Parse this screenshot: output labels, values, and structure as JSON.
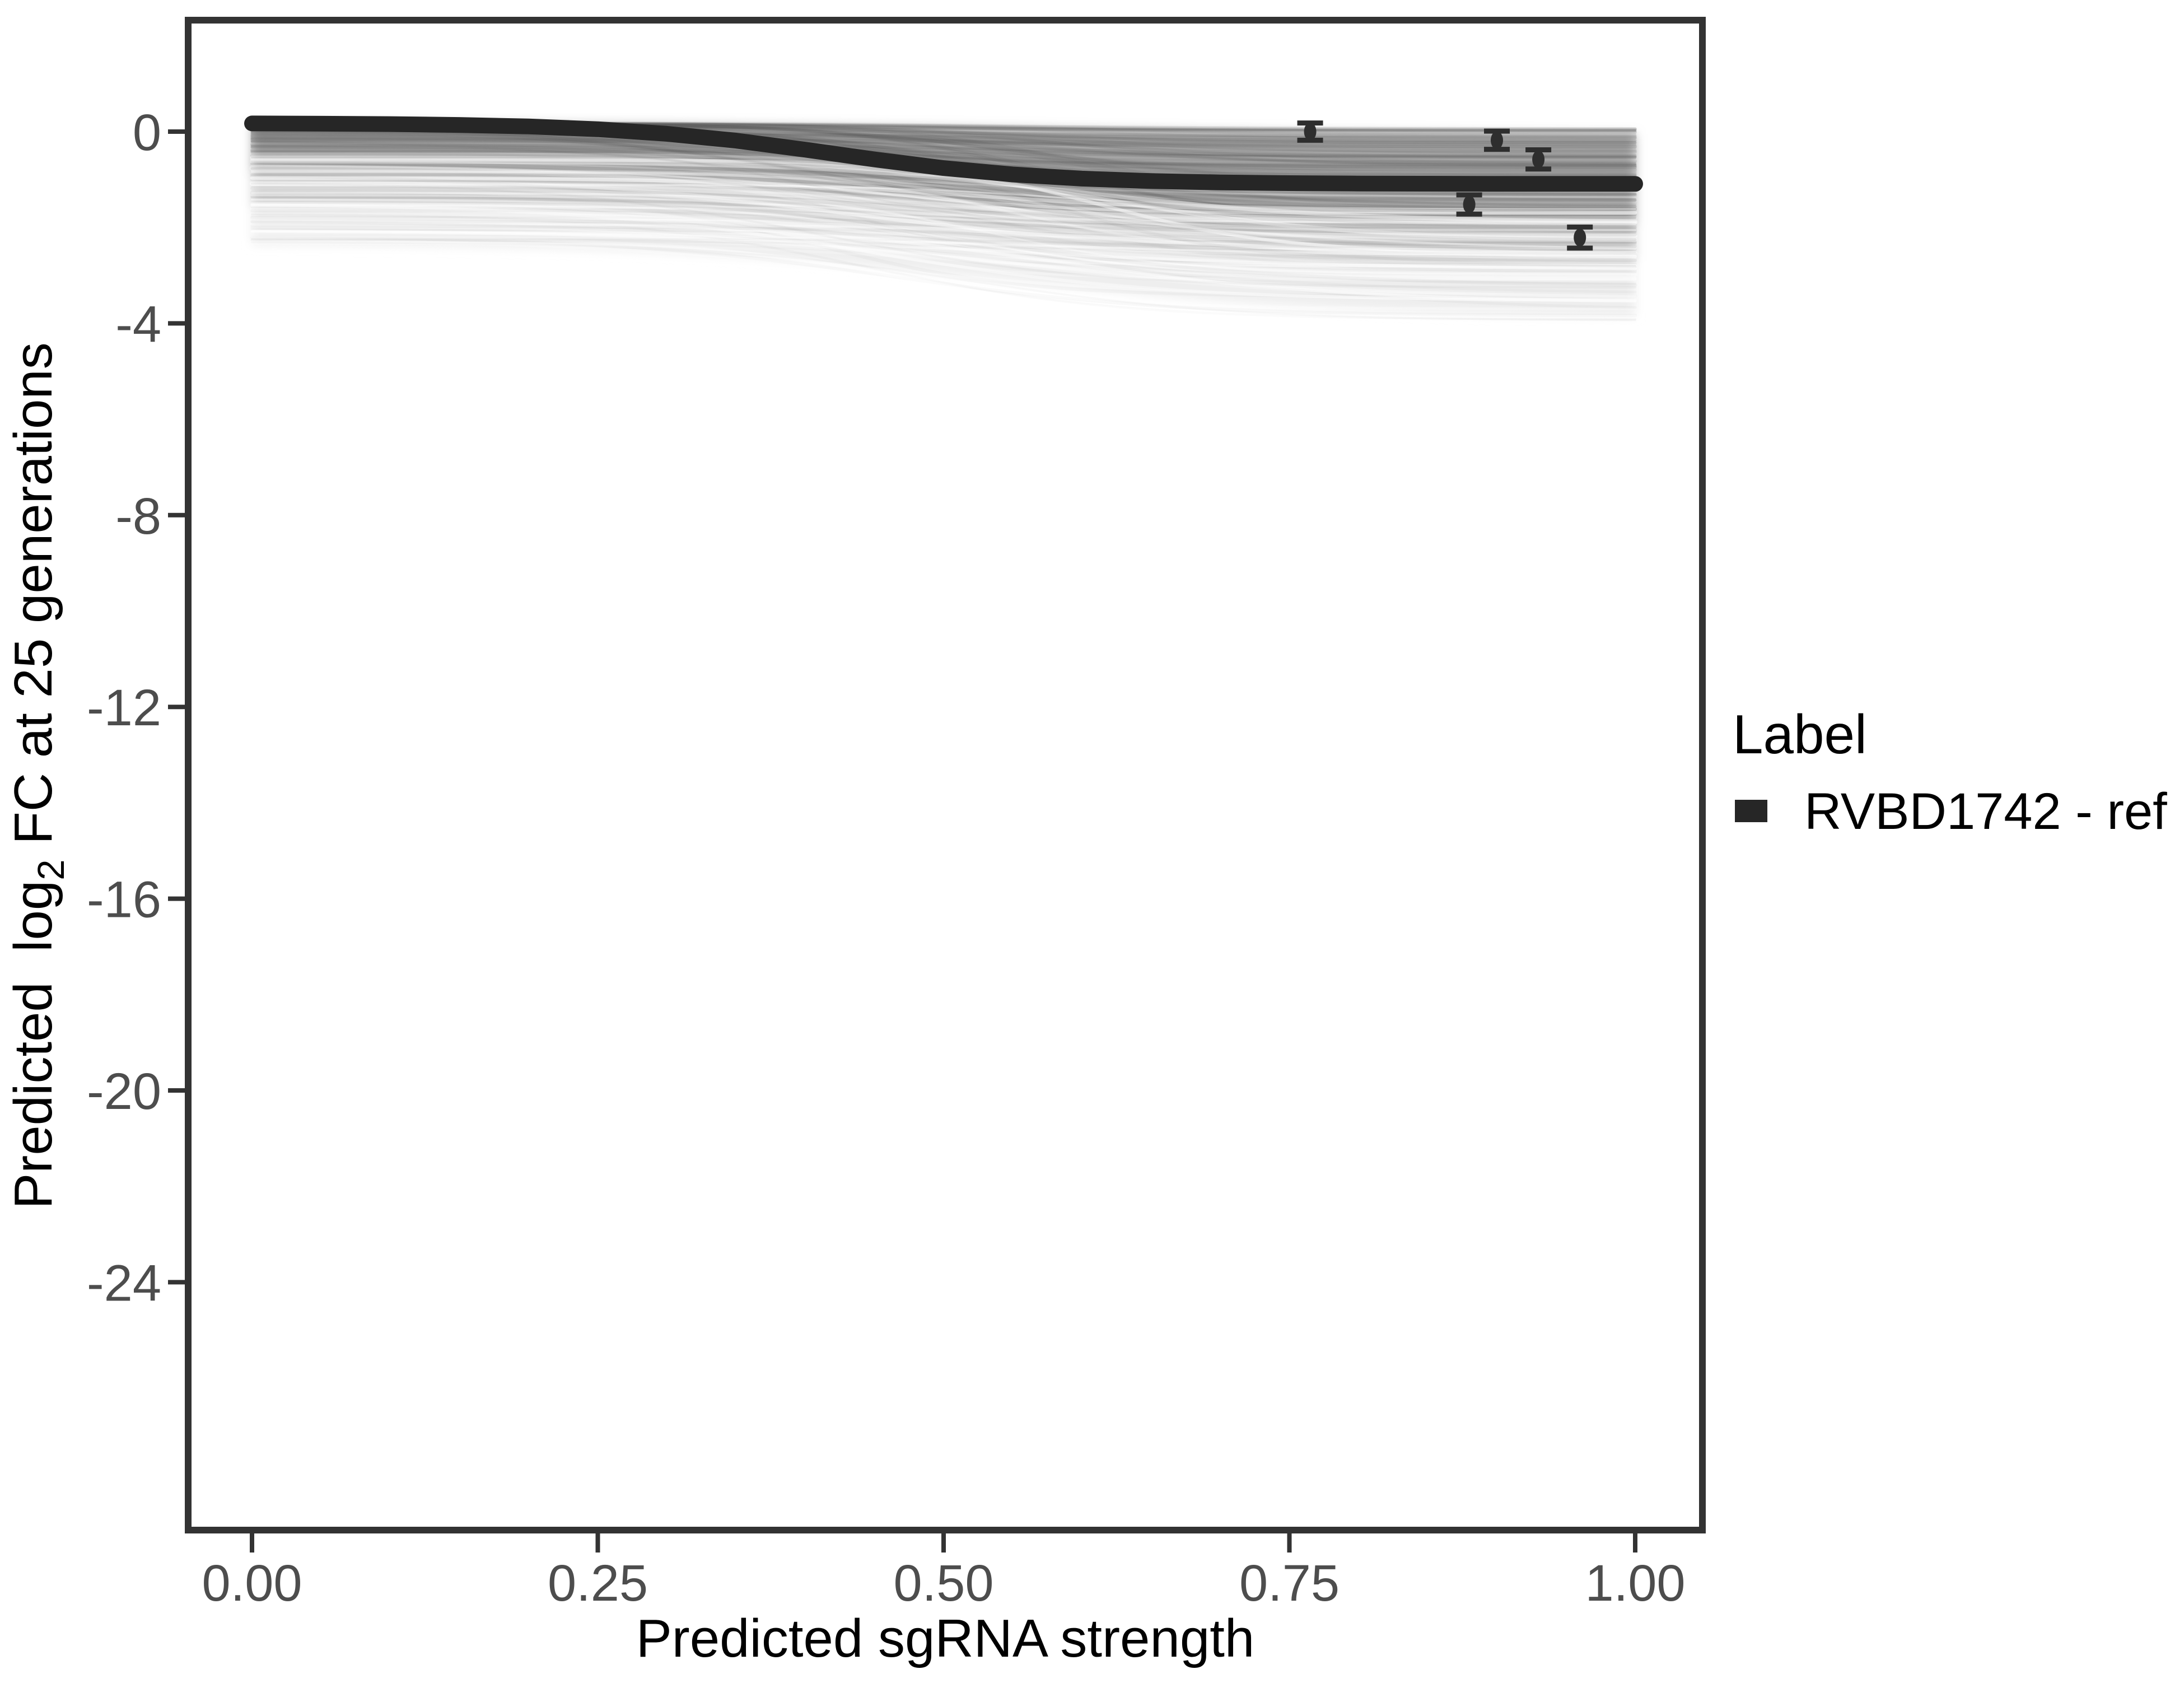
{
  "figure": {
    "background": "#ffffff"
  },
  "colors": {
    "axis_text": "#4d4d4d",
    "axis_line": "#333333",
    "panel_border": "#333333",
    "reference_curve": "#262626",
    "observed_point": "#2e2e2e",
    "band_dense": "#ababab",
    "band_mid": "#d2d2d2",
    "band_light": "#eeeeee"
  },
  "chart_data": {
    "type": "line",
    "title": "",
    "xlabel": "Predicted sgRNA strength",
    "ylabel": "Predicted log2 FC at 25 generations",
    "ylabel_parts": {
      "pre": "Predicted  log",
      "sub": "2",
      "post": " FC at 25 generations"
    },
    "xlim": [
      0,
      1
    ],
    "ylim": [
      -29.2,
      2.4
    ],
    "grid": false,
    "x_ticks": [
      {
        "value": 0.0,
        "label": "0.00"
      },
      {
        "value": 0.25,
        "label": "0.25"
      },
      {
        "value": 0.5,
        "label": "0.50"
      },
      {
        "value": 0.75,
        "label": "0.75"
      },
      {
        "value": 1.0,
        "label": "1.00"
      }
    ],
    "y_ticks": [
      {
        "value": 0,
        "label": "0"
      },
      {
        "value": -4,
        "label": "-4"
      },
      {
        "value": -8,
        "label": "-8"
      },
      {
        "value": -12,
        "label": "-12"
      },
      {
        "value": -16,
        "label": "-16"
      },
      {
        "value": -20,
        "label": "-20"
      },
      {
        "value": -24,
        "label": "-24"
      }
    ],
    "legend": {
      "title": "Label",
      "position": "right",
      "items": [
        {
          "label": "RVBD1742 - ref",
          "color": "#262626"
        }
      ]
    },
    "reference_curve": {
      "name": "RVBD1742 - ref",
      "color": "#262626",
      "stroke_width": 28,
      "points": [
        [
          0.0,
          0.17
        ],
        [
          0.05,
          0.165
        ],
        [
          0.1,
          0.156
        ],
        [
          0.15,
          0.139
        ],
        [
          0.2,
          0.107
        ],
        [
          0.25,
          0.05
        ],
        [
          0.3,
          -0.045
        ],
        [
          0.35,
          -0.188
        ],
        [
          0.4,
          -0.376
        ],
        [
          0.45,
          -0.58
        ],
        [
          0.5,
          -0.761
        ],
        [
          0.55,
          -0.894
        ],
        [
          0.6,
          -0.98
        ],
        [
          0.65,
          -1.031
        ],
        [
          0.7,
          -1.059
        ],
        [
          0.75,
          -1.075
        ],
        [
          0.8,
          -1.083
        ],
        [
          0.85,
          -1.087
        ],
        [
          0.9,
          -1.089
        ],
        [
          0.95,
          -1.09
        ],
        [
          1.0,
          -1.09
        ]
      ]
    },
    "observed_points": {
      "color": "#2e2e2e",
      "points": [
        {
          "x": 0.765,
          "y": 0.0,
          "err": 0.18
        },
        {
          "x": 0.9,
          "y": -0.18,
          "err": 0.19
        },
        {
          "x": 0.93,
          "y": -0.58,
          "err": 0.2
        },
        {
          "x": 0.88,
          "y": -1.52,
          "err": 0.2
        },
        {
          "x": 0.96,
          "y": -2.21,
          "err": 0.22
        }
      ]
    },
    "ensemble": {
      "description": "posterior sample curves drawn as translucent gray band",
      "seed": 20,
      "envelopes": {
        "top": {
          "s": 0.18,
          "e": -0.05,
          "m": 0.55,
          "k": 6
        },
        "d1": {
          "s": -0.85,
          "e": -1.95,
          "m": 0.5,
          "k": 9
        },
        "d2": {
          "s": -1.55,
          "e": -2.7,
          "m": 0.52,
          "k": 9
        },
        "d3": {
          "s": -2.35,
          "e": -3.85,
          "m": 0.55,
          "k": 8
        }
      },
      "fills": [
        {
          "upper": "top",
          "lower": "d1",
          "color": "#ababab"
        },
        {
          "upper": "d1",
          "lower": "d2",
          "color": "#d2d2d2"
        },
        {
          "upper": "d2",
          "lower": "d3",
          "color": "#eeeeee"
        }
      ],
      "dark_strands": {
        "count": 170,
        "color": "#4a4a4a",
        "alpha_min": 0.03,
        "alpha_max": 0.11
      },
      "white_strands": {
        "count": 45,
        "color": "#ffffff",
        "alpha_min": 0.22,
        "alpha_max": 0.5
      },
      "start_top": 0.18,
      "start_spread": 2.5,
      "start_power": 2.6,
      "drop_min": 0.12,
      "drop_spread": 2.4,
      "drop_power": 2.2,
      "mid_min": 0.4,
      "mid_span": 0.22,
      "k_min": 7,
      "k_span": 9,
      "floor": -3.9
    }
  }
}
